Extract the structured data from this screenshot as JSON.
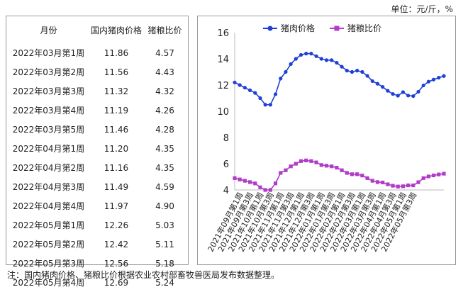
{
  "unit_label": "单位：元/斤，%",
  "table": {
    "headers": [
      "月份",
      "国内猪肉价格",
      "猪粮比价"
    ],
    "rows": [
      [
        "2022年03月第1周",
        "11.86",
        "4.57"
      ],
      [
        "2022年03月第2周",
        "11.56",
        "4.43"
      ],
      [
        "2022年03月第3周",
        "11.32",
        "4.32"
      ],
      [
        "2022年03月第4周",
        "11.19",
        "4.26"
      ],
      [
        "2022年03月第5周",
        "11.46",
        "4.28"
      ],
      [
        "2022年04月第1周",
        "11.20",
        "4.35"
      ],
      [
        "2022年04月第2周",
        "11.16",
        "4.35"
      ],
      [
        "2022年04月第3周",
        "11.49",
        "4.59"
      ],
      [
        "2022年04月第4周",
        "11.97",
        "4.90"
      ],
      [
        "2022年05月第1周",
        "12.26",
        "5.03"
      ],
      [
        "2022年05月第2周",
        "12.42",
        "5.11"
      ],
      [
        "2022年05月第3周",
        "12.56",
        "5.18"
      ],
      [
        "2022年05月第4周",
        "12.69",
        "5.24"
      ]
    ]
  },
  "chart_data": {
    "type": "line",
    "ylim": [
      4,
      16
    ],
    "yticks": [
      4,
      6,
      8,
      10,
      12,
      14,
      16
    ],
    "grid": false,
    "legend": "top",
    "x_tick_labels": [
      "2021年09月第1周",
      "2021年09月第3周",
      "2021年10月第1周",
      "2021年10月第3周",
      "2021年11月第1周",
      "2021年11月第3周",
      "2021年12月第1周",
      "2021年12月第3周",
      "2022年01月第1周",
      "2022年01月第3周",
      "2022年02月第1周",
      "2022年02月第3周",
      "2022年03月第1周",
      "2022年03月第3周",
      "2022年04月第1周",
      "2022年04月第3周",
      "2022年05月第1周",
      "2022年05月第3周"
    ],
    "series": [
      {
        "name": "猪肉价格",
        "color": "#1f3fd6",
        "marker": "circle",
        "values": [
          12.2,
          12.0,
          11.8,
          11.6,
          11.4,
          11.0,
          10.5,
          10.5,
          11.3,
          12.5,
          13.0,
          13.6,
          14.0,
          14.3,
          14.4,
          14.4,
          14.2,
          14.0,
          13.9,
          13.9,
          13.7,
          13.4,
          13.1,
          13.0,
          13.1,
          13.0,
          12.7,
          12.3,
          12.1,
          11.86,
          11.56,
          11.32,
          11.19,
          11.46,
          11.2,
          11.16,
          11.49,
          11.97,
          12.26,
          12.42,
          12.56,
          12.69
        ]
      },
      {
        "name": "猪粮比价",
        "color": "#b03cc8",
        "marker": "square",
        "values": [
          4.9,
          4.8,
          4.7,
          4.6,
          4.5,
          4.2,
          4.0,
          4.0,
          4.5,
          5.3,
          5.5,
          5.8,
          6.0,
          6.2,
          6.25,
          6.2,
          6.1,
          5.9,
          5.85,
          5.8,
          5.7,
          5.5,
          5.3,
          5.2,
          5.2,
          5.1,
          4.9,
          4.7,
          4.6,
          4.57,
          4.43,
          4.32,
          4.26,
          4.28,
          4.35,
          4.35,
          4.59,
          4.9,
          5.03,
          5.11,
          5.18,
          5.24
        ]
      }
    ]
  },
  "note": "注：国内猪肉价格、猪粮比价根据农业农村部畜牧兽医局发布数据整理。"
}
